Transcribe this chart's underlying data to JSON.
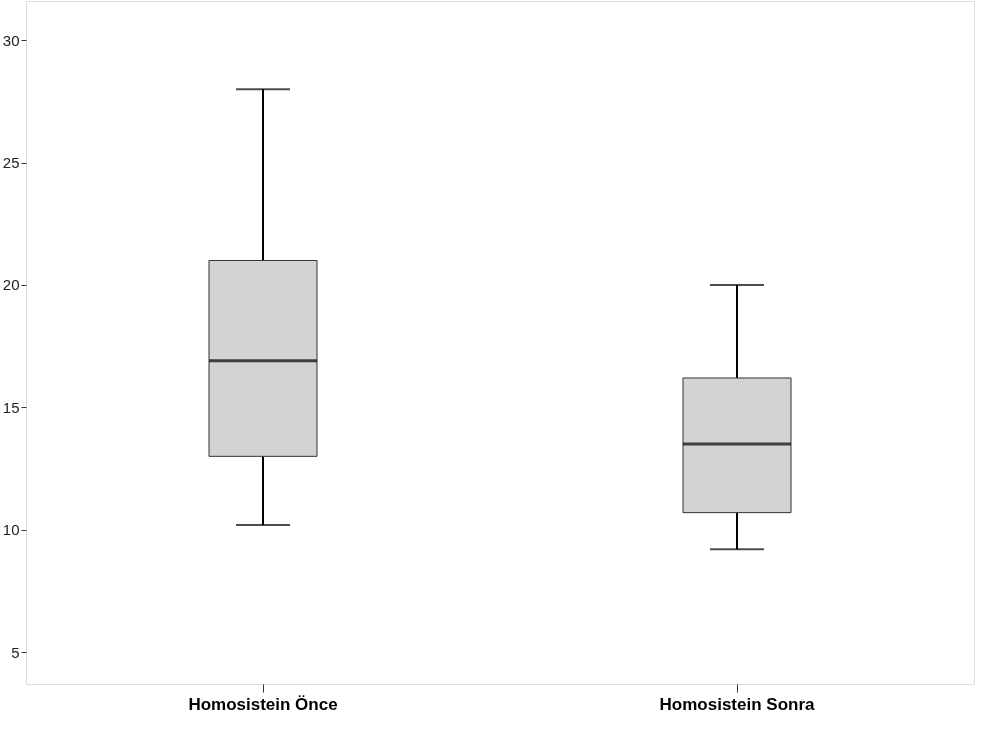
{
  "chart_data": {
    "type": "box",
    "categories": [
      "Homosistein Önce",
      "Homosistein Sonra"
    ],
    "boxes": [
      {
        "low": 10.2,
        "q1": 13.0,
        "median": 16.9,
        "q3": 21.0,
        "high": 28.0
      },
      {
        "low": 9.2,
        "q1": 10.7,
        "median": 13.5,
        "q3": 16.2,
        "high": 20.0
      }
    ],
    "color": "#d3d3d3",
    "ylim": [
      3.7,
      31.6
    ],
    "yticks": [
      5,
      10,
      15,
      20,
      25,
      30
    ],
    "grid": false
  }
}
